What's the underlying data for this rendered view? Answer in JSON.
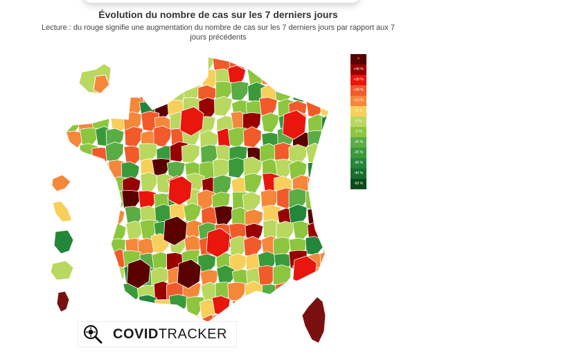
{
  "title": "Évolution du nombre de cas sur les 7 derniers jours",
  "subtitle_line1": "Lecture : du rouge signifie une augmentation du nombre de cas sur les 7 derniers jours par rapport aux 7",
  "subtitle_line2": "jours précédents",
  "legend": [
    {
      "label": ">",
      "color": "#5a0000"
    },
    {
      "label": "+40 %",
      "color": "#990000"
    },
    {
      "label": "+30 %",
      "color": "#e8160c"
    },
    {
      "label": "+20 %",
      "color": "#f15a2a"
    },
    {
      "label": "+10 %",
      "color": "#f5873a"
    },
    {
      "label": "+5 %",
      "color": "#f7cf5a"
    },
    {
      "label": "0 %",
      "color": "#b9d85f"
    },
    {
      "label": "-5 %",
      "color": "#8cc63f"
    },
    {
      "label": "-10 %",
      "color": "#5aac44"
    },
    {
      "label": "-20 %",
      "color": "#3a9a3a"
    },
    {
      "label": "-30 %",
      "color": "#23863a"
    },
    {
      "label": "-40 %",
      "color": "#176d2a"
    },
    {
      "label": "-50 %",
      "color": "#0c4a17"
    }
  ],
  "brand": {
    "bold": "COVID",
    "light": "TRACKER"
  }
}
